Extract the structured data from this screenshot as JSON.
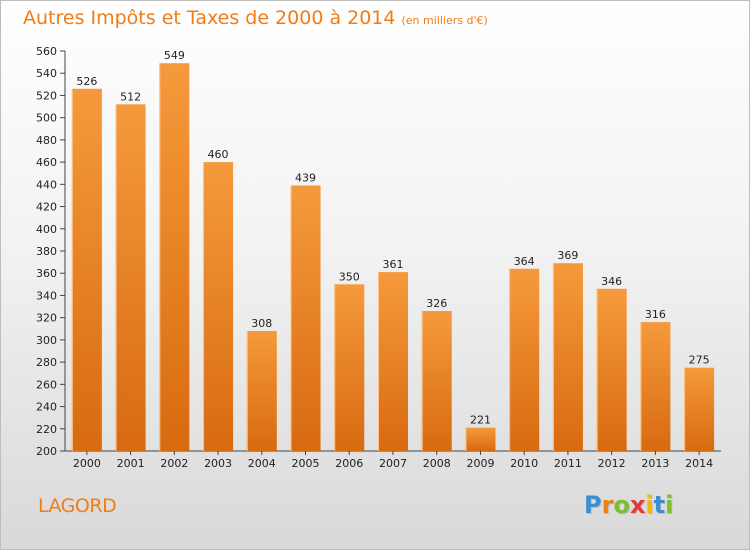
{
  "chart_data": {
    "type": "bar",
    "title": "Autres Impôts et Taxes de 2000 à 2014",
    "subtitle": "(en milliers d'€)",
    "categories": [
      "2000",
      "2001",
      "2002",
      "2003",
      "2004",
      "2005",
      "2006",
      "2007",
      "2008",
      "2009",
      "2010",
      "2011",
      "2012",
      "2013",
      "2014"
    ],
    "values": [
      526,
      512,
      549,
      460,
      308,
      439,
      350,
      361,
      326,
      221,
      364,
      369,
      346,
      316,
      275
    ],
    "ylim": [
      200,
      560
    ],
    "yticks": [
      200,
      220,
      240,
      260,
      280,
      300,
      320,
      340,
      360,
      380,
      400,
      420,
      440,
      460,
      480,
      500,
      520,
      540,
      560
    ],
    "grid": false,
    "bar_color": "#f59a3c",
    "bar_color_dark": "#d86a10",
    "xlabel": "",
    "ylabel": ""
  },
  "commune": "LAGORD",
  "logo": {
    "letters": [
      "P",
      "r",
      "o",
      "x",
      "i",
      "t",
      "i"
    ],
    "colors": [
      "#3a8fd4",
      "#f07d16",
      "#7cbf2e",
      "#e03a3a",
      "#f5b800",
      "#3a8fd4",
      "#7cbf2e"
    ]
  }
}
